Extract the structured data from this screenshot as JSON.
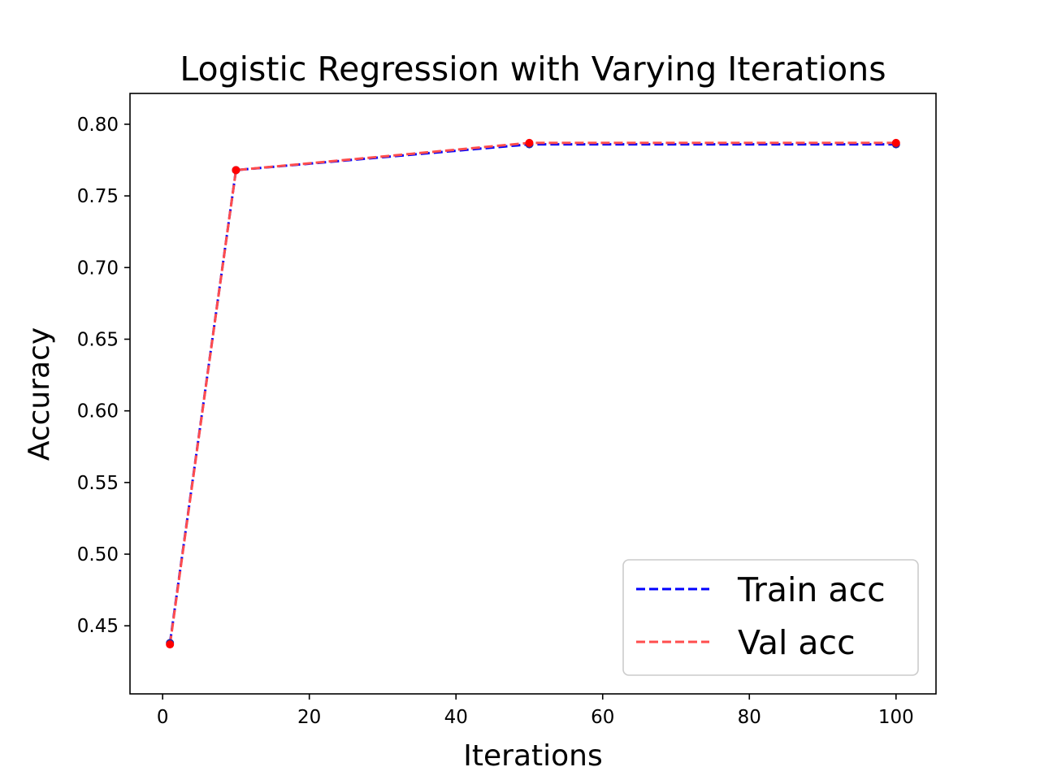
{
  "chart_data": {
    "type": "line",
    "title": "Logistic Regression with Varying Iterations",
    "xlabel": "Iterations",
    "ylabel": "Accuracy",
    "xlim": [
      -4.45,
      105.45
    ],
    "ylim": [
      0.4025,
      0.8215
    ],
    "x_ticks": [
      0,
      20,
      40,
      60,
      80,
      100
    ],
    "x_tick_labels": [
      "0",
      "20",
      "40",
      "60",
      "80",
      "100"
    ],
    "y_ticks": [
      0.45,
      0.5,
      0.55,
      0.6,
      0.65,
      0.7,
      0.75,
      0.8
    ],
    "y_tick_labels": [
      "0.45",
      "0.50",
      "0.55",
      "0.60",
      "0.65",
      "0.70",
      "0.75",
      "0.80"
    ],
    "grid": false,
    "legend_position": "lower-right",
    "x": [
      1,
      10,
      50,
      100
    ],
    "series": [
      {
        "name": "Train acc",
        "values": [
          0.438,
          0.768,
          0.786,
          0.786
        ],
        "color": "#0000ff",
        "line_style": "dashed",
        "marker_color": "#1f2aa8"
      },
      {
        "name": "Val acc",
        "values": [
          0.437,
          0.768,
          0.787,
          0.787
        ],
        "color": "#ff4d4d",
        "line_style": "dashed",
        "marker_color": "#ff0000"
      }
    ]
  }
}
